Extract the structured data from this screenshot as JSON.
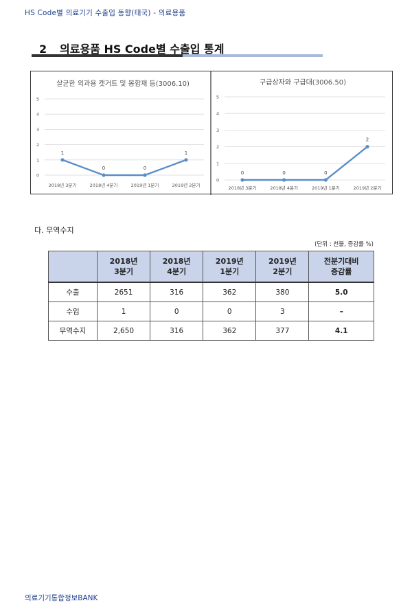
{
  "header": {
    "running_title": "HS Code별 의료기기 수출입 동향(태국) - 의료용품"
  },
  "section": {
    "number": "2",
    "title": "의료용품 HS Code별 수출입 통계"
  },
  "chart_data": [
    {
      "type": "line",
      "title": "살균한 외과용 캣거트 및 봉합재 등(3006.10)",
      "categories": [
        "2018년 3분기",
        "2018년 4분기",
        "2019년 1분기",
        "2019년 2분기"
      ],
      "values": [
        1,
        0,
        0,
        1
      ],
      "yticks": [
        0,
        1,
        2,
        3,
        4,
        5
      ],
      "ylim": [
        0,
        5
      ],
      "grid": true,
      "color": "#5b8ec9"
    },
    {
      "type": "line",
      "title": "구급상자와 구급대(3006.50)",
      "categories": [
        "2018년 3분기",
        "2018년 4분기",
        "2019년 1분기",
        "2019년 2분기"
      ],
      "values": [
        0,
        0,
        0,
        2
      ],
      "yticks": [
        0,
        1,
        2,
        3,
        4,
        5
      ],
      "ylim": [
        0,
        5
      ],
      "grid": true,
      "color": "#5b8ec9"
    }
  ],
  "trade": {
    "heading": "다. 무역수지",
    "unit_note": "(단위 : 천불, 증감률 %)",
    "columns": [
      {
        "line1": "2018년",
        "line2": "3분기"
      },
      {
        "line1": "2018년",
        "line2": "4분기"
      },
      {
        "line1": "2019년",
        "line2": "1분기"
      },
      {
        "line1": "2019년",
        "line2": "2분기"
      },
      {
        "line1": "전분기대비",
        "line2": "증감률"
      }
    ],
    "rows": [
      {
        "label": "수출",
        "cells": [
          "2651",
          "316",
          "362",
          "380",
          "5.0"
        ]
      },
      {
        "label": "수입",
        "cells": [
          "1",
          "0",
          "0",
          "3",
          "–"
        ]
      },
      {
        "label": "무역수지",
        "cells": [
          "2,650",
          "316",
          "362",
          "377",
          "4.1"
        ]
      }
    ]
  },
  "footer": {
    "text": "의료기기통합정보BANK"
  }
}
